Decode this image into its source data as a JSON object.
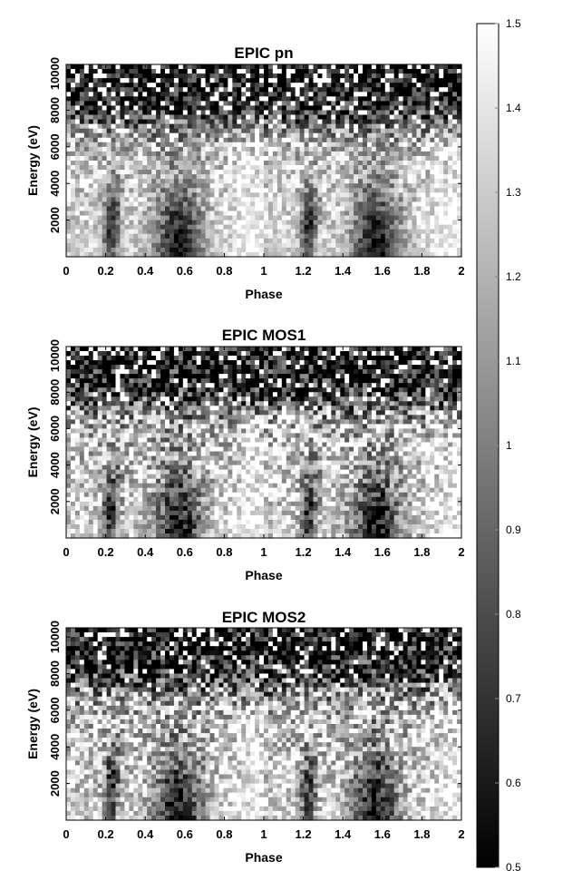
{
  "chart_data": [
    {
      "type": "heatmap",
      "title": "EPIC pn",
      "xlabel": "Phase",
      "ylabel": "Energy (eV)",
      "xlim": [
        0,
        2
      ],
      "ylim": [
        0,
        10500
      ],
      "xticks": [
        0,
        0.2,
        0.4,
        0.6,
        0.8,
        1,
        1.2,
        1.4,
        1.6,
        1.8,
        2
      ],
      "yticks": [
        2000,
        4000,
        6000,
        8000,
        10000
      ],
      "value_range": [
        0.5,
        1.5
      ],
      "features": {
        "dip_phases": [
          0.2,
          0.55,
          1.2,
          1.55
        ],
        "hard_band_noise_above_eV": 7000
      }
    },
    {
      "type": "heatmap",
      "title": "EPIC MOS1",
      "xlabel": "Phase",
      "ylabel": "Energy (eV)",
      "xlim": [
        0,
        2
      ],
      "ylim": [
        0,
        10500
      ],
      "xticks": [
        0,
        0.2,
        0.4,
        0.6,
        0.8,
        1,
        1.2,
        1.4,
        1.6,
        1.8,
        2
      ],
      "yticks": [
        2000,
        4000,
        6000,
        8000,
        10000
      ],
      "value_range": [
        0.5,
        1.5
      ],
      "features": {
        "dip_phases": [
          0.2,
          0.55,
          1.2,
          1.55
        ],
        "hard_band_noise_above_eV": 7000
      }
    },
    {
      "type": "heatmap",
      "title": "EPIC MOS2",
      "xlabel": "Phase",
      "ylabel": "Energy (eV)",
      "xlim": [
        0,
        2
      ],
      "ylim": [
        0,
        10500
      ],
      "xticks": [
        0,
        0.2,
        0.4,
        0.6,
        0.8,
        1,
        1.2,
        1.4,
        1.6,
        1.8,
        2
      ],
      "yticks": [
        2000,
        4000,
        6000,
        8000,
        10000
      ],
      "value_range": [
        0.5,
        1.5
      ],
      "features": {
        "dip_phases": [
          0.2,
          0.55,
          1.2,
          1.55
        ],
        "hard_band_noise_above_eV": 7000
      }
    }
  ],
  "colorbar": {
    "min": 0.5,
    "max": 1.5,
    "ticks": [
      0.5,
      0.6,
      0.7,
      0.8,
      0.9,
      1,
      1.1,
      1.2,
      1.3,
      1.4,
      1.5
    ],
    "colormap": "grayscale",
    "color_low": "#000000",
    "color_high": "#ffffff"
  }
}
